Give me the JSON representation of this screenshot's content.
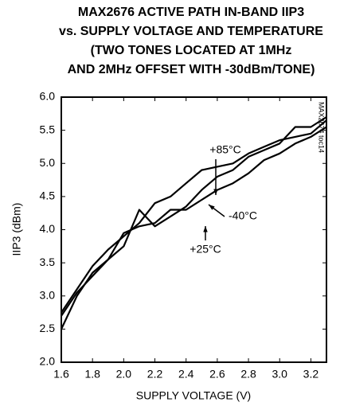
{
  "chart_data": {
    "type": "line",
    "title": [
      "MAX2676 ACTIVE PATH IN-BAND IIP3",
      "vs. SUPPLY VOLTAGE AND TEMPERATURE",
      "(TWO TONES LOCATED AT 1MHz",
      "AND 2MHz OFFSET WITH -30dBm/TONE)"
    ],
    "x_label": "SUPPLY VOLTAGE (V)",
    "y_label": "IIP3 (dBm)",
    "note": "MAX2674 toc14",
    "x": [
      1.6,
      1.7,
      1.8,
      1.9,
      2.0,
      2.1,
      2.2,
      2.3,
      2.4,
      2.5,
      2.6,
      2.7,
      2.8,
      2.9,
      3.0,
      3.1,
      3.2,
      3.3
    ],
    "series": [
      {
        "name": "+85°C",
        "color": "#000000",
        "values": [
          2.75,
          3.1,
          3.45,
          3.7,
          3.9,
          4.1,
          4.4,
          4.5,
          4.7,
          4.9,
          4.95,
          5.0,
          5.15,
          5.25,
          5.35,
          5.4,
          5.45,
          5.65
        ]
      },
      {
        "name": "-40°C",
        "color": "#000000",
        "values": [
          2.5,
          3.0,
          3.35,
          3.55,
          3.75,
          4.3,
          4.05,
          4.2,
          4.35,
          4.6,
          4.8,
          4.9,
          5.1,
          5.2,
          5.3,
          5.55,
          5.55,
          5.7
        ]
      },
      {
        "name": "+25°C",
        "color": "#000000",
        "values": [
          2.7,
          3.05,
          3.3,
          3.55,
          3.95,
          4.05,
          4.1,
          4.3,
          4.3,
          4.45,
          4.6,
          4.7,
          4.85,
          5.05,
          5.15,
          5.3,
          5.4,
          5.55
        ]
      }
    ],
    "xlim": [
      1.6,
      3.3
    ],
    "ylim": [
      2.0,
      6.0
    ],
    "xticks": [
      1.6,
      1.8,
      {
        "value": 2.0,
        "label": "2.0"
      },
      2.2,
      2.4,
      2.6,
      2.8,
      {
        "value": 3.0,
        "label": "3.0"
      },
      3.2
    ],
    "yticks": [
      {
        "value": 2.0,
        "label": "2.0"
      },
      2.5,
      {
        "value": 3.0,
        "label": "3.0"
      },
      3.5,
      {
        "value": 4.0,
        "label": "4.0"
      },
      4.5,
      {
        "value": 5.0,
        "label": "5.0"
      },
      5.5,
      {
        "value": 6.0,
        "label": "6.0"
      }
    ],
    "grid": false
  }
}
